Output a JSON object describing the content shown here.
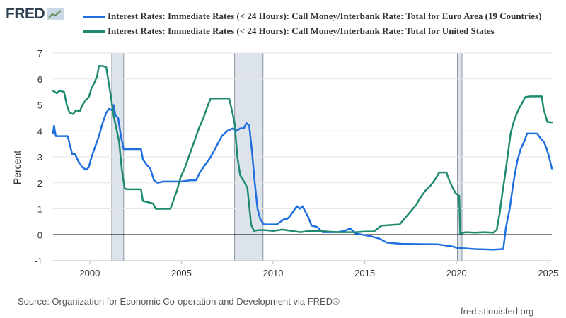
{
  "brand": {
    "logo_text": "FRED"
  },
  "source": "Source: Organization for Economic Co-operation and Development via FRED®",
  "site": "fred.stlouisfed.org",
  "chart_data": {
    "type": "line",
    "title": "",
    "ylabel": "Percent",
    "xlabel": "",
    "xlim": [
      1998.0,
      2025.2
    ],
    "ylim": [
      -1,
      7
    ],
    "yticks": [
      -1,
      0,
      1,
      2,
      3,
      4,
      5,
      6,
      7
    ],
    "xticks": [
      2000,
      2005,
      2010,
      2015,
      2020,
      2025
    ],
    "zero_line": true,
    "recessions": [
      {
        "start": 2001.2,
        "end": 2001.85
      },
      {
        "start": 2007.9,
        "end": 2009.45
      },
      {
        "start": 2020.05,
        "end": 2020.3
      }
    ],
    "series": [
      {
        "name": "Interest Rates: Immediate Rates (< 24 Hours): Call Money/Interbank Rate: Total for Euro Area (19 Countries)",
        "color": "#1f6fde",
        "points": [
          [
            1998.0,
            3.9
          ],
          [
            1998.05,
            4.2
          ],
          [
            1998.15,
            3.8
          ],
          [
            1998.8,
            3.8
          ],
          [
            1998.9,
            3.5
          ],
          [
            1999.05,
            3.1
          ],
          [
            1999.2,
            3.1
          ],
          [
            1999.4,
            2.8
          ],
          [
            1999.6,
            2.6
          ],
          [
            1999.8,
            2.5
          ],
          [
            1999.95,
            2.6
          ],
          [
            2000.1,
            3.0
          ],
          [
            2000.3,
            3.4
          ],
          [
            2000.5,
            3.8
          ],
          [
            2000.7,
            4.3
          ],
          [
            2000.9,
            4.7
          ],
          [
            2001.05,
            4.85
          ],
          [
            2001.2,
            4.8
          ],
          [
            2001.3,
            5.0
          ],
          [
            2001.4,
            4.6
          ],
          [
            2001.55,
            4.5
          ],
          [
            2001.7,
            3.8
          ],
          [
            2001.85,
            3.3
          ],
          [
            2002.0,
            3.3
          ],
          [
            2002.5,
            3.3
          ],
          [
            2002.8,
            3.3
          ],
          [
            2002.9,
            2.9
          ],
          [
            2003.1,
            2.7
          ],
          [
            2003.3,
            2.55
          ],
          [
            2003.5,
            2.1
          ],
          [
            2003.7,
            2.0
          ],
          [
            2004.0,
            2.05
          ],
          [
            2004.5,
            2.05
          ],
          [
            2005.0,
            2.05
          ],
          [
            2005.5,
            2.1
          ],
          [
            2005.8,
            2.1
          ],
          [
            2006.0,
            2.4
          ],
          [
            2006.3,
            2.7
          ],
          [
            2006.6,
            3.0
          ],
          [
            2006.9,
            3.4
          ],
          [
            2007.2,
            3.8
          ],
          [
            2007.5,
            4.0
          ],
          [
            2007.8,
            4.1
          ],
          [
            2008.0,
            4.0
          ],
          [
            2008.2,
            4.1
          ],
          [
            2008.4,
            4.1
          ],
          [
            2008.55,
            4.3
          ],
          [
            2008.7,
            4.2
          ],
          [
            2008.85,
            3.2
          ],
          [
            2009.0,
            2.0
          ],
          [
            2009.15,
            1.0
          ],
          [
            2009.3,
            0.6
          ],
          [
            2009.5,
            0.4
          ],
          [
            2009.8,
            0.4
          ],
          [
            2010.2,
            0.4
          ],
          [
            2010.4,
            0.5
          ],
          [
            2010.6,
            0.6
          ],
          [
            2010.75,
            0.6
          ],
          [
            2010.9,
            0.7
          ],
          [
            2011.1,
            0.9
          ],
          [
            2011.3,
            1.1
          ],
          [
            2011.45,
            1.0
          ],
          [
            2011.6,
            1.1
          ],
          [
            2011.75,
            0.9
          ],
          [
            2011.9,
            0.7
          ],
          [
            2012.1,
            0.35
          ],
          [
            2012.4,
            0.3
          ],
          [
            2012.7,
            0.1
          ],
          [
            2013.0,
            0.1
          ],
          [
            2013.5,
            0.1
          ],
          [
            2013.9,
            0.15
          ],
          [
            2014.2,
            0.25
          ],
          [
            2014.5,
            0.05
          ],
          [
            2014.9,
            0.0
          ],
          [
            2015.3,
            -0.05
          ],
          [
            2015.8,
            -0.15
          ],
          [
            2016.2,
            -0.3
          ],
          [
            2017.0,
            -0.35
          ],
          [
            2018.0,
            -0.36
          ],
          [
            2019.0,
            -0.37
          ],
          [
            2019.8,
            -0.45
          ],
          [
            2020.0,
            -0.5
          ],
          [
            2021.0,
            -0.55
          ],
          [
            2022.0,
            -0.57
          ],
          [
            2022.55,
            -0.55
          ],
          [
            2022.7,
            0.3
          ],
          [
            2022.9,
            1.0
          ],
          [
            2023.1,
            2.0
          ],
          [
            2023.3,
            2.8
          ],
          [
            2023.5,
            3.3
          ],
          [
            2023.7,
            3.6
          ],
          [
            2023.85,
            3.9
          ],
          [
            2024.0,
            3.9
          ],
          [
            2024.4,
            3.9
          ],
          [
            2024.6,
            3.7
          ],
          [
            2024.75,
            3.6
          ],
          [
            2024.9,
            3.35
          ],
          [
            2025.05,
            3.0
          ],
          [
            2025.2,
            2.55
          ]
        ]
      },
      {
        "name": "Interest Rates: Immediate Rates (< 24 Hours): Call Money/Interbank Rate: Total for United States",
        "color": "#1f8a70",
        "points": [
          [
            1998.0,
            5.55
          ],
          [
            1998.2,
            5.45
          ],
          [
            1998.35,
            5.55
          ],
          [
            1998.6,
            5.5
          ],
          [
            1998.75,
            5.0
          ],
          [
            1998.9,
            4.7
          ],
          [
            1999.1,
            4.65
          ],
          [
            1999.25,
            4.8
          ],
          [
            1999.45,
            4.75
          ],
          [
            1999.6,
            5.0
          ],
          [
            1999.8,
            5.2
          ],
          [
            1999.95,
            5.3
          ],
          [
            2000.1,
            5.65
          ],
          [
            2000.25,
            5.85
          ],
          [
            2000.4,
            6.1
          ],
          [
            2000.5,
            6.5
          ],
          [
            2000.7,
            6.5
          ],
          [
            2000.9,
            6.45
          ],
          [
            2001.0,
            6.0
          ],
          [
            2001.15,
            5.35
          ],
          [
            2001.3,
            4.6
          ],
          [
            2001.45,
            4.1
          ],
          [
            2001.6,
            3.6
          ],
          [
            2001.75,
            2.5
          ],
          [
            2001.9,
            1.8
          ],
          [
            2002.0,
            1.75
          ],
          [
            2002.5,
            1.75
          ],
          [
            2002.8,
            1.75
          ],
          [
            2002.9,
            1.3
          ],
          [
            2003.2,
            1.25
          ],
          [
            2003.45,
            1.2
          ],
          [
            2003.6,
            1.0
          ],
          [
            2003.8,
            1.0
          ],
          [
            2004.4,
            1.0
          ],
          [
            2004.55,
            1.3
          ],
          [
            2004.75,
            1.7
          ],
          [
            2004.95,
            2.2
          ],
          [
            2005.2,
            2.6
          ],
          [
            2005.45,
            3.1
          ],
          [
            2005.7,
            3.6
          ],
          [
            2005.95,
            4.1
          ],
          [
            2006.2,
            4.5
          ],
          [
            2006.45,
            5.0
          ],
          [
            2006.6,
            5.25
          ],
          [
            2007.0,
            5.25
          ],
          [
            2007.4,
            5.25
          ],
          [
            2007.6,
            5.25
          ],
          [
            2007.75,
            4.8
          ],
          [
            2007.9,
            4.3
          ],
          [
            2008.05,
            3.0
          ],
          [
            2008.2,
            2.3
          ],
          [
            2008.45,
            2.0
          ],
          [
            2008.6,
            1.8
          ],
          [
            2008.8,
            0.4
          ],
          [
            2008.95,
            0.15
          ],
          [
            2009.2,
            0.18
          ],
          [
            2009.5,
            0.18
          ],
          [
            2010.0,
            0.15
          ],
          [
            2010.5,
            0.2
          ],
          [
            2011.0,
            0.15
          ],
          [
            2011.5,
            0.1
          ],
          [
            2012.0,
            0.15
          ],
          [
            2012.5,
            0.15
          ],
          [
            2013.0,
            0.12
          ],
          [
            2013.5,
            0.1
          ],
          [
            2014.0,
            0.1
          ],
          [
            2014.5,
            0.1
          ],
          [
            2015.0,
            0.12
          ],
          [
            2015.5,
            0.13
          ],
          [
            2015.9,
            0.35
          ],
          [
            2016.5,
            0.38
          ],
          [
            2016.9,
            0.4
          ],
          [
            2017.2,
            0.65
          ],
          [
            2017.5,
            0.9
          ],
          [
            2017.8,
            1.15
          ],
          [
            2018.0,
            1.4
          ],
          [
            2018.3,
            1.7
          ],
          [
            2018.6,
            1.9
          ],
          [
            2018.9,
            2.2
          ],
          [
            2019.05,
            2.4
          ],
          [
            2019.45,
            2.4
          ],
          [
            2019.6,
            2.1
          ],
          [
            2019.8,
            1.8
          ],
          [
            2019.95,
            1.6
          ],
          [
            2020.15,
            1.5
          ],
          [
            2020.2,
            0.05
          ],
          [
            2020.5,
            0.1
          ],
          [
            2021.0,
            0.08
          ],
          [
            2021.5,
            0.1
          ],
          [
            2022.0,
            0.08
          ],
          [
            2022.2,
            0.2
          ],
          [
            2022.35,
            0.8
          ],
          [
            2022.5,
            1.6
          ],
          [
            2022.65,
            2.3
          ],
          [
            2022.8,
            3.1
          ],
          [
            2022.95,
            3.9
          ],
          [
            2023.1,
            4.3
          ],
          [
            2023.25,
            4.6
          ],
          [
            2023.4,
            4.85
          ],
          [
            2023.6,
            5.1
          ],
          [
            2023.75,
            5.3
          ],
          [
            2024.0,
            5.33
          ],
          [
            2024.4,
            5.33
          ],
          [
            2024.65,
            5.33
          ],
          [
            2024.75,
            4.85
          ],
          [
            2024.85,
            4.6
          ],
          [
            2024.95,
            4.35
          ],
          [
            2025.2,
            4.33
          ]
        ]
      }
    ]
  }
}
